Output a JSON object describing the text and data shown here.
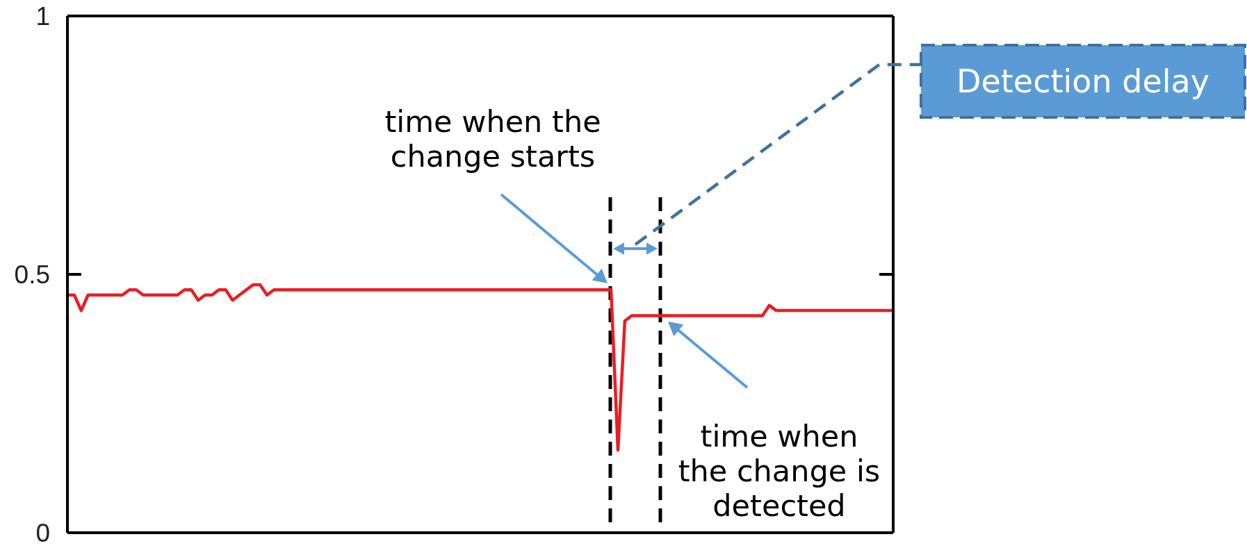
{
  "chart_data": {
    "type": "line",
    "categories": [
      null,
      null,
      null,
      null,
      null,
      null,
      null,
      null,
      null,
      null,
      null,
      null,
      null,
      null,
      null,
      null,
      null,
      null,
      null,
      null,
      null,
      null,
      null,
      null,
      null,
      null,
      null,
      null,
      null,
      null,
      null,
      null,
      null,
      null,
      null,
      null,
      null,
      null,
      null,
      null,
      null,
      null,
      null,
      null,
      null,
      null,
      null,
      null,
      null,
      null,
      null,
      null,
      null,
      null,
      null,
      null,
      null,
      null,
      null,
      null,
      null,
      null,
      null,
      null,
      null,
      null,
      null,
      null,
      null,
      null,
      null,
      null,
      null,
      null,
      null,
      null,
      null,
      null,
      null,
      null,
      null,
      null,
      null,
      null,
      null,
      null,
      null,
      null,
      null,
      null,
      null,
      null,
      null,
      null,
      null,
      null,
      null,
      null,
      null,
      null,
      null,
      null,
      null,
      null,
      null,
      null,
      null,
      null,
      null,
      null,
      null,
      null,
      null,
      null,
      null,
      null,
      null,
      null,
      null,
      null,
      null
    ],
    "series": [
      {
        "color": "#ec1c24",
        "values": [
          0.46,
          0.46,
          0.43,
          0.46,
          0.46,
          0.46,
          0.46,
          0.46,
          0.46,
          0.47,
          0.47,
          0.46,
          0.46,
          0.46,
          0.46,
          0.46,
          0.46,
          0.47,
          0.47,
          0.45,
          0.46,
          0.46,
          0.47,
          0.47,
          0.45,
          0.46,
          0.47,
          0.48,
          0.48,
          0.46,
          0.47,
          0.47,
          0.47,
          0.47,
          0.47,
          0.47,
          0.47,
          0.47,
          0.47,
          0.47,
          0.47,
          0.47,
          0.47,
          0.47,
          0.47,
          0.47,
          0.47,
          0.47,
          0.47,
          0.47,
          0.47,
          0.47,
          0.47,
          0.47,
          0.47,
          0.47,
          0.47,
          0.47,
          0.47,
          0.47,
          0.47,
          0.47,
          0.47,
          0.47,
          0.47,
          0.47,
          0.47,
          0.47,
          0.47,
          0.47,
          0.47,
          0.47,
          0.47,
          0.47,
          0.47,
          0.47,
          0.47,
          0.47,
          0.47,
          0.47,
          0.16,
          0.41,
          0.42,
          0.42,
          0.42,
          0.42,
          0.42,
          0.42,
          0.42,
          0.42,
          0.42,
          0.42,
          0.42,
          0.42,
          0.42,
          0.42,
          0.42,
          0.42,
          0.42,
          0.42,
          0.42,
          0.42,
          0.44,
          0.43,
          0.43,
          0.43,
          0.43,
          0.43,
          0.43,
          0.43,
          0.43,
          0.43,
          0.43,
          0.43,
          0.43,
          0.43,
          0.43,
          0.43,
          0.43,
          0.43,
          0.43
        ]
      }
    ],
    "ylim": [
      0,
      1
    ],
    "yticks": [
      0,
      0.5,
      1
    ],
    "tick_labels": "y",
    "marker": "none",
    "annotations": [
      "time when the\nchange starts",
      "time when\nthe change is\ndetected",
      "Detection delay"
    ]
  }
}
